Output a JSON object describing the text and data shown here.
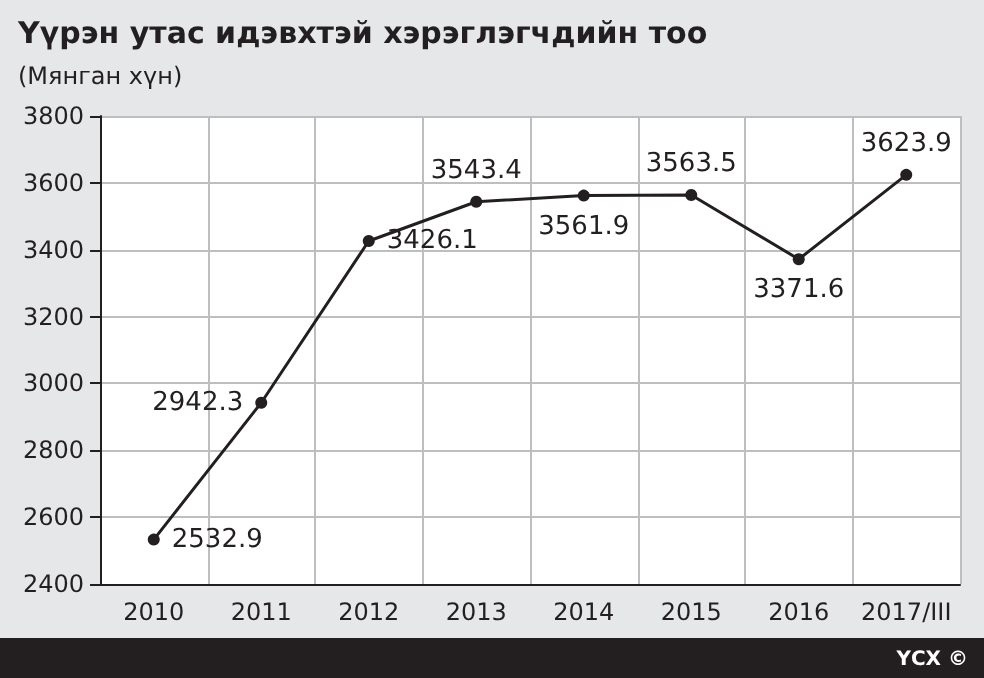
{
  "chart_data": {
    "type": "line",
    "title": "Үүрэн утас идэвхтэй хэрэглэгчдийн тоо",
    "subtitle": "(Мянган хүн)",
    "categories": [
      "2010",
      "2011",
      "2012",
      "2013",
      "2014",
      "2015",
      "2016",
      "2017/III"
    ],
    "series": [
      {
        "color": "#231f20",
        "values": [
          2532.9,
          2942.3,
          3426.1,
          3543.4,
          3561.9,
          3563.5,
          3371.6,
          3623.9
        ]
      }
    ],
    "ylim": [
      2400,
      3800
    ],
    "yticks": [
      2400,
      2600,
      2800,
      3000,
      3200,
      3400,
      3600,
      3800
    ],
    "grid": true,
    "marker": "circle",
    "line_style": "solid",
    "data_labels": true,
    "annotations": [
      "ҮСХ ©"
    ]
  }
}
